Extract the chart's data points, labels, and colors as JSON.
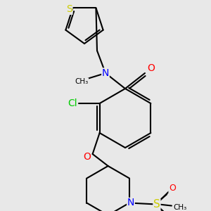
{
  "bg_color": "#e8e8e8",
  "bond_color": "#000000",
  "bond_lw": 1.5,
  "atom_colors": {
    "S": "#cccc00",
    "N": "#0000ff",
    "O": "#ff0000",
    "Cl": "#00cc00"
  },
  "font_size": 9
}
